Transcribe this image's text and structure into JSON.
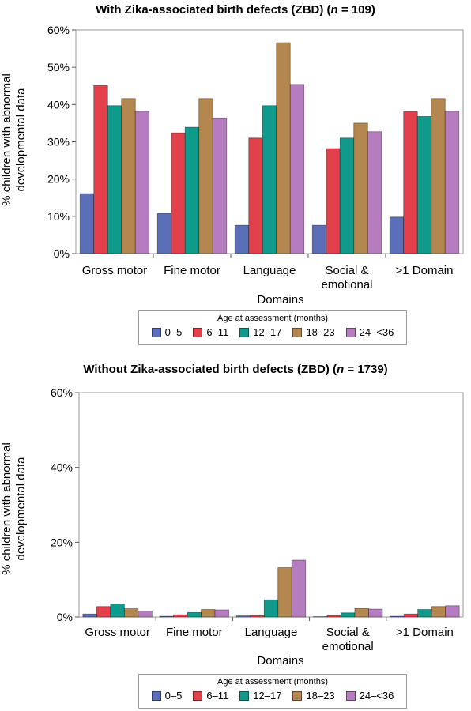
{
  "colors": {
    "0-5": "#5a6fb8",
    "6-11": "#e2404a",
    "12-17": "#0f9a8c",
    "18-23": "#b3874f",
    "24-36": "#b57dc0"
  },
  "chart_data": [
    {
      "type": "bar",
      "title_prefix": "With Zika-associated birth defects (ZBD) (",
      "title_n_symbol": "n",
      "title_suffix": " = 109)",
      "xlabel": "Domains",
      "ylabel_line1": "% children with abnormal",
      "ylabel_line2": "developmental data",
      "categories": [
        "Gross motor",
        "Fine motor",
        "Language",
        "Social & emotional",
        ">1 Domain"
      ],
      "category_lines": [
        [
          "Gross motor"
        ],
        [
          "Fine motor"
        ],
        [
          "Language"
        ],
        [
          "Social &",
          "emotional"
        ],
        [
          ">1 Domain"
        ]
      ],
      "ylim": [
        0,
        60
      ],
      "yticks": [
        0,
        10,
        20,
        30,
        40,
        50,
        60
      ],
      "ytick_labels": [
        "0%",
        "10%",
        "20%",
        "30%",
        "40%",
        "50%",
        "60%"
      ],
      "grid": false,
      "legend_title": "Age at assessment (months)",
      "legend_position": "bottom",
      "series": [
        {
          "name": "0–5",
          "color_key": "0-5",
          "values": [
            16.1,
            10.8,
            7.6,
            7.6,
            9.8
          ]
        },
        {
          "name": "6–11",
          "color_key": "6-11",
          "values": [
            45.1,
            32.4,
            31.0,
            28.2,
            38.1
          ]
        },
        {
          "name": "12–17",
          "color_key": "12-17",
          "values": [
            39.7,
            33.9,
            39.7,
            31.0,
            36.8
          ]
        },
        {
          "name": "18–23",
          "color_key": "18-23",
          "values": [
            41.6,
            41.6,
            56.6,
            35.0,
            41.6
          ]
        },
        {
          "name": "24–<36",
          "color_key": "24-36",
          "values": [
            38.2,
            36.4,
            45.4,
            32.7,
            38.2
          ]
        }
      ]
    },
    {
      "type": "bar",
      "title_prefix": "Without Zika-associated birth defects (ZBD) (",
      "title_n_symbol": "n",
      "title_suffix": " = 1739)",
      "xlabel": "Domains",
      "ylabel_line1": "% children with abnormal",
      "ylabel_line2": "developmental data",
      "categories": [
        "Gross motor",
        "Fine motor",
        "Language",
        "Social & emotional",
        ">1 Domain"
      ],
      "category_lines": [
        [
          "Gross motor"
        ],
        [
          "Fine motor"
        ],
        [
          "Language"
        ],
        [
          "Social &",
          "emotional"
        ],
        [
          ">1 Domain"
        ]
      ],
      "ylim": [
        0,
        60
      ],
      "yticks": [
        0,
        20,
        40,
        60
      ],
      "ytick_labels": [
        "0%",
        "20%",
        "40%",
        "60%"
      ],
      "grid": false,
      "legend_title": "Age at assessment (months)",
      "legend_position": "bottom",
      "series": [
        {
          "name": "0–5",
          "color_key": "0-5",
          "values": [
            0.8,
            0.2,
            0.3,
            0.1,
            0.2
          ]
        },
        {
          "name": "6–11",
          "color_key": "6-11",
          "values": [
            2.8,
            0.6,
            0.4,
            0.4,
            0.8
          ]
        },
        {
          "name": "12–17",
          "color_key": "12-17",
          "values": [
            3.5,
            1.2,
            4.6,
            1.1,
            2.0
          ]
        },
        {
          "name": "18–23",
          "color_key": "18-23",
          "values": [
            2.2,
            2.0,
            13.2,
            2.3,
            2.8
          ]
        },
        {
          "name": "24–<36",
          "color_key": "24-36",
          "values": [
            1.6,
            1.9,
            15.2,
            2.1,
            3.0
          ]
        }
      ]
    }
  ]
}
